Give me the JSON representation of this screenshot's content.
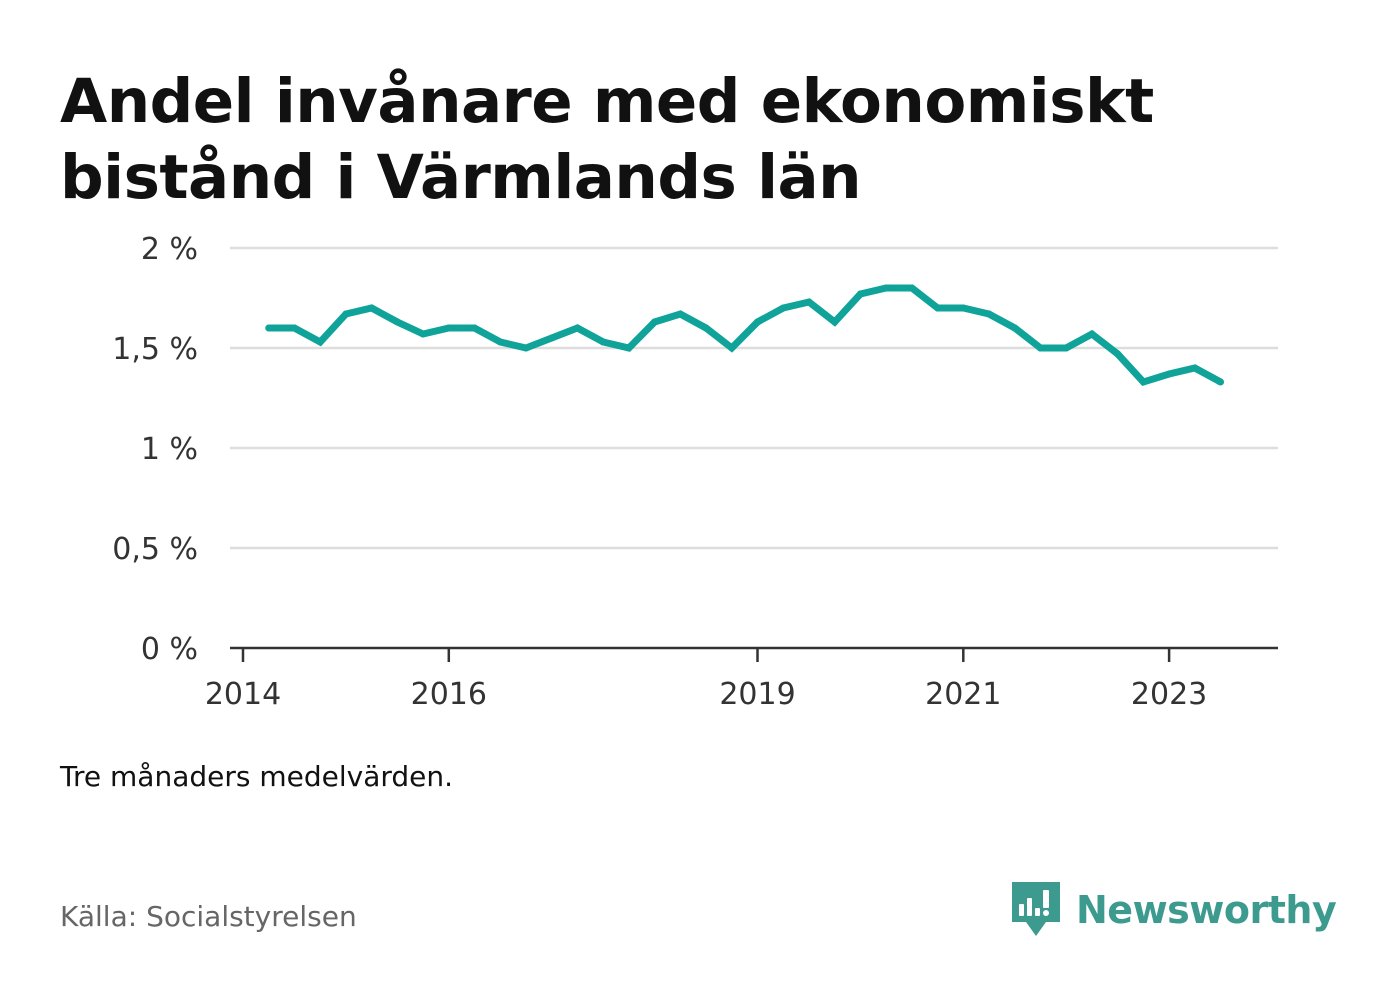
{
  "title": "Andel invånare med ekonomiskt bistånd i Värmlands län",
  "footnote": "Tre månaders medelvärden.",
  "source": "Källa: Socialstyrelsen",
  "brand": {
    "name": "Newsworthy",
    "icon": "newsworthy-logo-icon",
    "color": "#3d9a8f"
  },
  "colors": {
    "line": "#0fa39a",
    "grid": "#dddddd",
    "axis": "#333333"
  },
  "chart_data": {
    "type": "line",
    "title": "Andel invånare med ekonomiskt bistånd i Värmlands län",
    "xlabel": "",
    "ylabel": "",
    "x_range": [
      2014.0,
      2024.3
    ],
    "ylim": [
      0,
      2
    ],
    "y_ticks": [
      0,
      0.5,
      1,
      1.5,
      2
    ],
    "y_tick_labels": [
      "0 %",
      "0,5 %",
      "1 %",
      "1,5 %",
      "2 %"
    ],
    "x_ticks": [
      2014,
      2016,
      2019,
      2021,
      2023
    ],
    "x_tick_labels": [
      "2014",
      "2016",
      "2019",
      "2021",
      "2023"
    ],
    "grid": true,
    "legend": "none",
    "series": [
      {
        "values": [
          {
            "x": 2014.25,
            "y": 1.6
          },
          {
            "x": 2014.5,
            "y": 1.6
          },
          {
            "x": 2014.75,
            "y": 1.53
          },
          {
            "x": 2015.0,
            "y": 1.67
          },
          {
            "x": 2015.25,
            "y": 1.7
          },
          {
            "x": 2015.5,
            "y": 1.63
          },
          {
            "x": 2015.75,
            "y": 1.57
          },
          {
            "x": 2016.0,
            "y": 1.6
          },
          {
            "x": 2016.25,
            "y": 1.6
          },
          {
            "x": 2016.5,
            "y": 1.53
          },
          {
            "x": 2016.75,
            "y": 1.5
          },
          {
            "x": 2017.0,
            "y": 1.55
          },
          {
            "x": 2017.25,
            "y": 1.6
          },
          {
            "x": 2017.5,
            "y": 1.53
          },
          {
            "x": 2017.75,
            "y": 1.5
          },
          {
            "x": 2018.0,
            "y": 1.63
          },
          {
            "x": 2018.25,
            "y": 1.67
          },
          {
            "x": 2018.5,
            "y": 1.6
          },
          {
            "x": 2018.75,
            "y": 1.5
          },
          {
            "x": 2019.0,
            "y": 1.63
          },
          {
            "x": 2019.25,
            "y": 1.7
          },
          {
            "x": 2019.5,
            "y": 1.73
          },
          {
            "x": 2019.75,
            "y": 1.63
          },
          {
            "x": 2020.0,
            "y": 1.77
          },
          {
            "x": 2020.25,
            "y": 1.8
          },
          {
            "x": 2020.5,
            "y": 1.8
          },
          {
            "x": 2020.75,
            "y": 1.7
          },
          {
            "x": 2021.0,
            "y": 1.7
          },
          {
            "x": 2021.25,
            "y": 1.67
          },
          {
            "x": 2021.5,
            "y": 1.6
          },
          {
            "x": 2021.75,
            "y": 1.5
          },
          {
            "x": 2022.0,
            "y": 1.5
          },
          {
            "x": 2022.25,
            "y": 1.57
          },
          {
            "x": 2022.5,
            "y": 1.47
          },
          {
            "x": 2022.75,
            "y": 1.33
          },
          {
            "x": 2023.0,
            "y": 1.37
          },
          {
            "x": 2023.25,
            "y": 1.4
          },
          {
            "x": 2023.5,
            "y": 1.33
          }
        ]
      }
    ]
  }
}
